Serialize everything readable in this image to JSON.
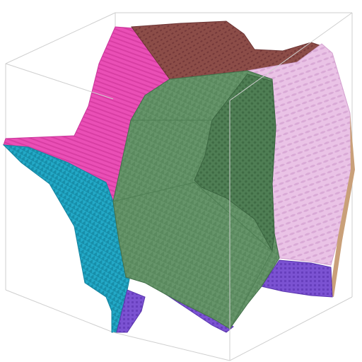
{
  "scene": {
    "background": "#ffffff",
    "box_line_color": "#c8c8c8",
    "regions": [
      {
        "name": "magenta-region",
        "color": "#e84fb4"
      },
      {
        "name": "brown-region",
        "color": "#8a4a45"
      },
      {
        "name": "green-region",
        "color": "#5f8f63"
      },
      {
        "name": "dark-green-region",
        "color": "#4c7a50"
      },
      {
        "name": "light-pink-region",
        "color": "#e8bfe4"
      },
      {
        "name": "cyan-region",
        "color": "#21a6c4"
      },
      {
        "name": "purple-region",
        "color": "#7a4fd0"
      },
      {
        "name": "tan-edge",
        "color": "#c9a079"
      }
    ]
  }
}
